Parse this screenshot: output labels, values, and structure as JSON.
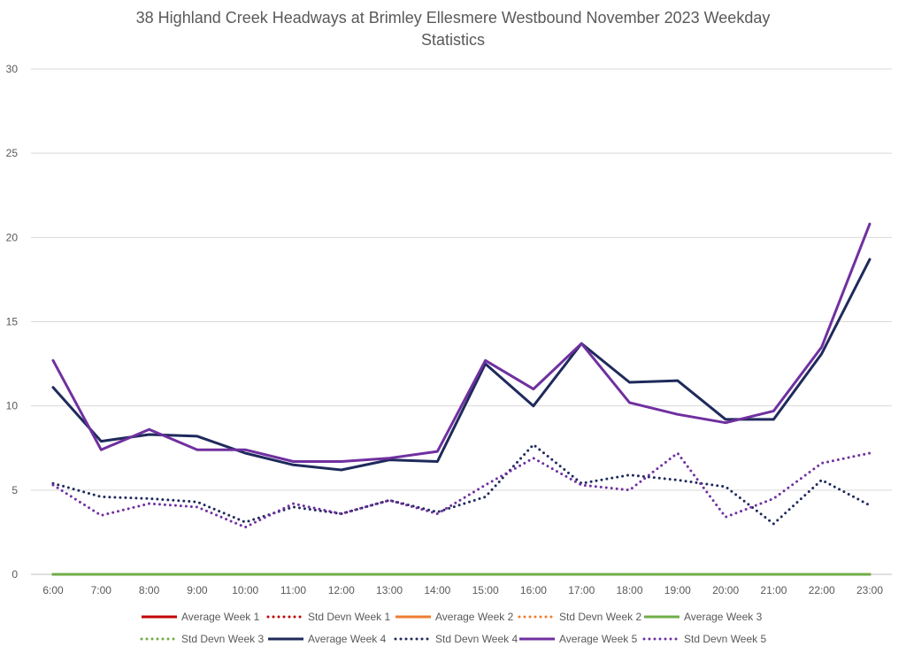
{
  "chart_data": {
    "type": "line",
    "title_line1": "38 Highland Creek Headways at Brimley Ellesmere Westbound November 2023 Weekday",
    "title_line2": "Statistics",
    "xlabel": "",
    "ylabel": "",
    "categories": [
      "6:00",
      "7:00",
      "8:00",
      "9:00",
      "10:00",
      "11:00",
      "12:00",
      "13:00",
      "14:00",
      "15:00",
      "16:00",
      "17:00",
      "18:00",
      "19:00",
      "20:00",
      "21:00",
      "22:00",
      "23:00"
    ],
    "ylim": [
      0,
      30
    ],
    "yticks": [
      0,
      5,
      10,
      15,
      20,
      25,
      30
    ],
    "grid": true,
    "legend_position": "bottom",
    "series": [
      {
        "name": "Average Week 1",
        "color": "#c00000",
        "style": "solid",
        "values": [
          0,
          0,
          0,
          0,
          0,
          0,
          0,
          0,
          0,
          0,
          0,
          0,
          0,
          0,
          0,
          0,
          0,
          0
        ]
      },
      {
        "name": "Std Devn Week 1",
        "color": "#c00000",
        "style": "dotted",
        "values": [
          0,
          0,
          0,
          0,
          0,
          0,
          0,
          0,
          0,
          0,
          0,
          0,
          0,
          0,
          0,
          0,
          0,
          0
        ]
      },
      {
        "name": "Average Week 2",
        "color": "#ed7d31",
        "style": "solid",
        "values": [
          0,
          0,
          0,
          0,
          0,
          0,
          0,
          0,
          0,
          0,
          0,
          0,
          0,
          0,
          0,
          0,
          0,
          0
        ]
      },
      {
        "name": "Std Devn Week 2",
        "color": "#ed7d31",
        "style": "dotted",
        "values": [
          0,
          0,
          0,
          0,
          0,
          0,
          0,
          0,
          0,
          0,
          0,
          0,
          0,
          0,
          0,
          0,
          0,
          0
        ]
      },
      {
        "name": "Average Week 3",
        "color": "#70ad47",
        "style": "solid",
        "values": [
          0,
          0,
          0,
          0,
          0,
          0,
          0,
          0,
          0,
          0,
          0,
          0,
          0,
          0,
          0,
          0,
          0,
          0
        ]
      },
      {
        "name": "Std Devn Week 3",
        "color": "#70ad47",
        "style": "dotted",
        "values": [
          0,
          0,
          0,
          0,
          0,
          0,
          0,
          0,
          0,
          0,
          0,
          0,
          0,
          0,
          0,
          0,
          0,
          0
        ]
      },
      {
        "name": "Average Week 4",
        "color": "#1f2a5c",
        "style": "solid",
        "values": [
          11.1,
          7.9,
          8.3,
          8.2,
          7.2,
          6.5,
          6.2,
          6.8,
          6.7,
          12.5,
          10.0,
          13.7,
          11.4,
          11.5,
          9.2,
          9.2,
          13.1,
          18.7
        ]
      },
      {
        "name": "Std Devn Week 4",
        "color": "#1f2a5c",
        "style": "dotted",
        "values": [
          5.4,
          4.6,
          4.5,
          4.3,
          3.1,
          4.0,
          3.6,
          4.4,
          3.7,
          4.6,
          7.7,
          5.4,
          5.9,
          5.6,
          5.2,
          3.0,
          5.6,
          4.1
        ]
      },
      {
        "name": "Average Week 5",
        "color": "#7030a0",
        "style": "solid",
        "values": [
          12.7,
          7.4,
          8.6,
          7.4,
          7.4,
          6.7,
          6.7,
          6.9,
          7.3,
          12.7,
          11.0,
          13.7,
          10.2,
          9.5,
          9.0,
          9.7,
          13.5,
          20.8
        ]
      },
      {
        "name": "Std Devn Week 5",
        "color": "#7030a0",
        "style": "dotted",
        "values": [
          5.3,
          3.5,
          4.2,
          4.0,
          2.8,
          4.2,
          3.6,
          4.4,
          3.6,
          5.3,
          6.9,
          5.3,
          5.0,
          7.2,
          3.4,
          4.5,
          6.6,
          7.2
        ]
      }
    ]
  }
}
